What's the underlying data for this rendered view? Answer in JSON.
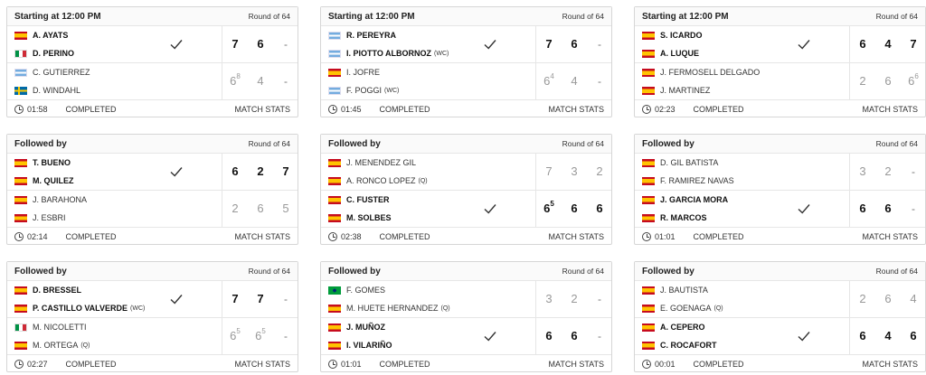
{
  "matches": [
    {
      "header": "Starting at 12:00 PM",
      "round": "Round of 64",
      "team1": {
        "winner": true,
        "players": [
          {
            "name": "A. AYATS",
            "tag": "",
            "flag": "ESP"
          },
          {
            "name": "D. PERINO",
            "tag": "",
            "flag": "ITA"
          }
        ],
        "scores": [
          {
            "v": "7",
            "sup": ""
          },
          {
            "v": "6",
            "sup": ""
          },
          {
            "v": "-",
            "sup": ""
          }
        ]
      },
      "team2": {
        "winner": false,
        "players": [
          {
            "name": "C. GUTIERREZ",
            "tag": "",
            "flag": "ARG"
          },
          {
            "name": "D. WINDAHL",
            "tag": "",
            "flag": "SWE"
          }
        ],
        "scores": [
          {
            "v": "6",
            "sup": "8"
          },
          {
            "v": "4",
            "sup": ""
          },
          {
            "v": "-",
            "sup": ""
          }
        ]
      },
      "time": "01:58",
      "status": "COMPLETED",
      "stats": "MATCH STATS"
    },
    {
      "header": "Starting at 12:00 PM",
      "round": "Round of 64",
      "team1": {
        "winner": true,
        "players": [
          {
            "name": "R. PEREYRA",
            "tag": "",
            "flag": "ARG"
          },
          {
            "name": "I. PIOTTO ALBORNOZ",
            "tag": "(WC)",
            "flag": "ARG"
          }
        ],
        "scores": [
          {
            "v": "7",
            "sup": ""
          },
          {
            "v": "6",
            "sup": ""
          },
          {
            "v": "-",
            "sup": ""
          }
        ]
      },
      "team2": {
        "winner": false,
        "players": [
          {
            "name": "I. JOFRE",
            "tag": "",
            "flag": "ESP"
          },
          {
            "name": "F. POGGI",
            "tag": "(WC)",
            "flag": "ARG"
          }
        ],
        "scores": [
          {
            "v": "6",
            "sup": "4"
          },
          {
            "v": "4",
            "sup": ""
          },
          {
            "v": "-",
            "sup": ""
          }
        ]
      },
      "time": "01:45",
      "status": "COMPLETED",
      "stats": "MATCH STATS"
    },
    {
      "header": "Starting at 12:00 PM",
      "round": "Round of 64",
      "team1": {
        "winner": true,
        "players": [
          {
            "name": "S. ICARDO",
            "tag": "",
            "flag": "ESP"
          },
          {
            "name": "A. LUQUE",
            "tag": "",
            "flag": "ESP"
          }
        ],
        "scores": [
          {
            "v": "6",
            "sup": ""
          },
          {
            "v": "4",
            "sup": ""
          },
          {
            "v": "7",
            "sup": ""
          }
        ]
      },
      "team2": {
        "winner": false,
        "players": [
          {
            "name": "J. FERMOSELL DELGADO",
            "tag": "",
            "flag": "ESP"
          },
          {
            "name": "J. MARTINEZ",
            "tag": "",
            "flag": "ESP"
          }
        ],
        "scores": [
          {
            "v": "2",
            "sup": ""
          },
          {
            "v": "6",
            "sup": ""
          },
          {
            "v": "6",
            "sup": "6"
          }
        ]
      },
      "time": "02:23",
      "status": "COMPLETED",
      "stats": "MATCH STATS"
    },
    {
      "header": "Followed by",
      "round": "Round of 64",
      "team1": {
        "winner": true,
        "players": [
          {
            "name": "T. BUENO",
            "tag": "",
            "flag": "ESP"
          },
          {
            "name": "M. QUILEZ",
            "tag": "",
            "flag": "ESP"
          }
        ],
        "scores": [
          {
            "v": "6",
            "sup": ""
          },
          {
            "v": "2",
            "sup": ""
          },
          {
            "v": "7",
            "sup": ""
          }
        ]
      },
      "team2": {
        "winner": false,
        "players": [
          {
            "name": "J. BARAHONA",
            "tag": "",
            "flag": "ESP"
          },
          {
            "name": "J. ESBRI",
            "tag": "",
            "flag": "ESP"
          }
        ],
        "scores": [
          {
            "v": "2",
            "sup": ""
          },
          {
            "v": "6",
            "sup": ""
          },
          {
            "v": "5",
            "sup": ""
          }
        ]
      },
      "time": "02:14",
      "status": "COMPLETED",
      "stats": "MATCH STATS"
    },
    {
      "header": "Followed by",
      "round": "Round of 64",
      "team1": {
        "winner": false,
        "players": [
          {
            "name": "J. MENENDEZ GIL",
            "tag": "",
            "flag": "ESP"
          },
          {
            "name": "A. RONCO LOPEZ",
            "tag": "(Q)",
            "flag": "ESP"
          }
        ],
        "scores": [
          {
            "v": "7",
            "sup": ""
          },
          {
            "v": "3",
            "sup": ""
          },
          {
            "v": "2",
            "sup": ""
          }
        ]
      },
      "team2": {
        "winner": true,
        "players": [
          {
            "name": "C. FUSTER",
            "tag": "",
            "flag": "ESP"
          },
          {
            "name": "M. SOLBES",
            "tag": "",
            "flag": "ESP"
          }
        ],
        "scores": [
          {
            "v": "6",
            "sup": "5"
          },
          {
            "v": "6",
            "sup": ""
          },
          {
            "v": "6",
            "sup": ""
          }
        ]
      },
      "time": "02:38",
      "status": "COMPLETED",
      "stats": "MATCH STATS"
    },
    {
      "header": "Followed by",
      "round": "Round of 64",
      "team1": {
        "winner": false,
        "players": [
          {
            "name": "D. GIL BATISTA",
            "tag": "",
            "flag": "ESP"
          },
          {
            "name": "F. RAMIREZ NAVAS",
            "tag": "",
            "flag": "ESP"
          }
        ],
        "scores": [
          {
            "v": "3",
            "sup": ""
          },
          {
            "v": "2",
            "sup": ""
          },
          {
            "v": "-",
            "sup": ""
          }
        ]
      },
      "team2": {
        "winner": true,
        "players": [
          {
            "name": "J. GARCIA MORA",
            "tag": "",
            "flag": "ESP"
          },
          {
            "name": "R. MARCOS",
            "tag": "",
            "flag": "ESP"
          }
        ],
        "scores": [
          {
            "v": "6",
            "sup": ""
          },
          {
            "v": "6",
            "sup": ""
          },
          {
            "v": "-",
            "sup": ""
          }
        ]
      },
      "time": "01:01",
      "status": "COMPLETED",
      "stats": "MATCH STATS"
    },
    {
      "header": "Followed by",
      "round": "Round of 64",
      "team1": {
        "winner": true,
        "players": [
          {
            "name": "D. BRESSEL",
            "tag": "",
            "flag": "ESP"
          },
          {
            "name": "P. CASTILLO VALVERDE",
            "tag": "(WC)",
            "flag": "ESP"
          }
        ],
        "scores": [
          {
            "v": "7",
            "sup": ""
          },
          {
            "v": "7",
            "sup": ""
          },
          {
            "v": "-",
            "sup": ""
          }
        ]
      },
      "team2": {
        "winner": false,
        "players": [
          {
            "name": "M. NICOLETTI",
            "tag": "",
            "flag": "ITA"
          },
          {
            "name": "M. ORTEGA",
            "tag": "(Q)",
            "flag": "ESP"
          }
        ],
        "scores": [
          {
            "v": "6",
            "sup": "5"
          },
          {
            "v": "6",
            "sup": "5"
          },
          {
            "v": "-",
            "sup": ""
          }
        ]
      },
      "time": "02:27",
      "status": "COMPLETED",
      "stats": "MATCH STATS"
    },
    {
      "header": "Followed by",
      "round": "Round of 64",
      "team1": {
        "winner": false,
        "players": [
          {
            "name": "F. GOMES",
            "tag": "",
            "flag": "BRA"
          },
          {
            "name": "M. HUETE HERNANDEZ",
            "tag": "(Q)",
            "flag": "ESP"
          }
        ],
        "scores": [
          {
            "v": "3",
            "sup": ""
          },
          {
            "v": "2",
            "sup": ""
          },
          {
            "v": "-",
            "sup": ""
          }
        ]
      },
      "team2": {
        "winner": true,
        "players": [
          {
            "name": "J. MUÑOZ",
            "tag": "",
            "flag": "ESP"
          },
          {
            "name": "I. VILARIÑO",
            "tag": "",
            "flag": "ESP"
          }
        ],
        "scores": [
          {
            "v": "6",
            "sup": ""
          },
          {
            "v": "6",
            "sup": ""
          },
          {
            "v": "-",
            "sup": ""
          }
        ]
      },
      "time": "01:01",
      "status": "COMPLETED",
      "stats": "MATCH STATS"
    },
    {
      "header": "Followed by",
      "round": "Round of 64",
      "team1": {
        "winner": false,
        "players": [
          {
            "name": "J. BAUTISTA",
            "tag": "",
            "flag": "ESP"
          },
          {
            "name": "E. GOENAGA",
            "tag": "(Q)",
            "flag": "ESP"
          }
        ],
        "scores": [
          {
            "v": "2",
            "sup": ""
          },
          {
            "v": "6",
            "sup": ""
          },
          {
            "v": "4",
            "sup": ""
          }
        ]
      },
      "team2": {
        "winner": true,
        "players": [
          {
            "name": "A. CEPERO",
            "tag": "",
            "flag": "ESP"
          },
          {
            "name": "C. ROCAFORT",
            "tag": "",
            "flag": "ESP"
          }
        ],
        "scores": [
          {
            "v": "6",
            "sup": ""
          },
          {
            "v": "4",
            "sup": ""
          },
          {
            "v": "6",
            "sup": ""
          }
        ]
      },
      "time": "00:01",
      "status": "COMPLETED",
      "stats": "MATCH STATS"
    }
  ]
}
